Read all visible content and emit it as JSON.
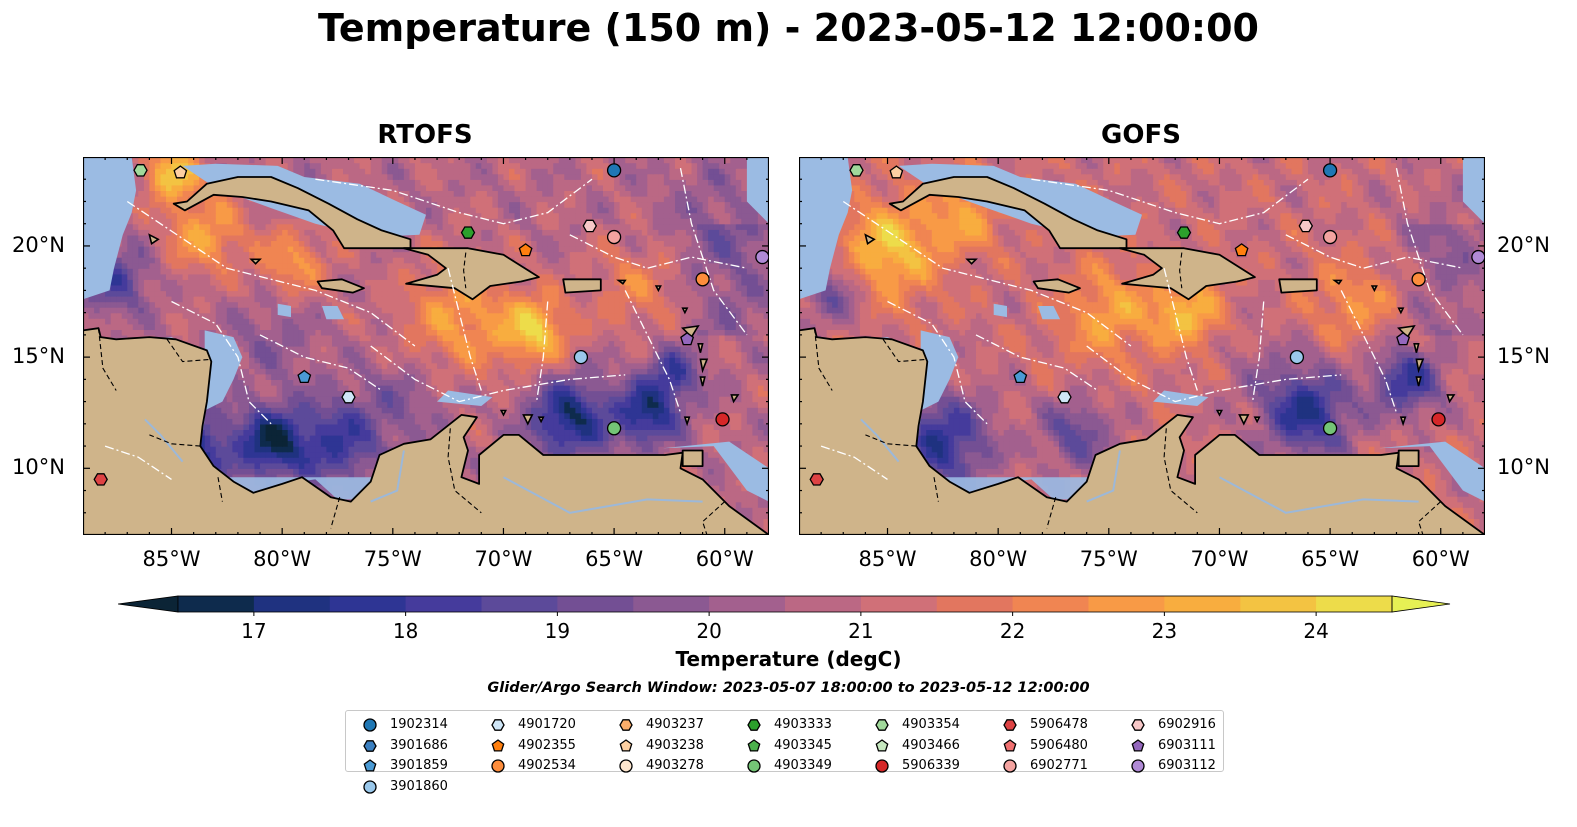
{
  "title": "Temperature (150 m) - 2023-05-12 12:00:00",
  "panels": [
    {
      "title": "RTOFS",
      "yticks_side": "left"
    },
    {
      "title": "GOFS",
      "yticks_side": "right"
    }
  ],
  "map_extent": {
    "lon_min": -89,
    "lon_max": -58,
    "lat_min": 7,
    "lat_max": 24
  },
  "xticks": [
    "85°W",
    "80°W",
    "75°W",
    "70°W",
    "65°W",
    "60°W"
  ],
  "xtick_values": [
    -85,
    -80,
    -75,
    -70,
    -65,
    -60
  ],
  "yticks": [
    "20°N",
    "15°N",
    "10°N"
  ],
  "ytick_values": [
    20,
    15,
    10
  ],
  "colorbar": {
    "label": "Temperature (degC)",
    "ticks": [
      "17",
      "18",
      "19",
      "20",
      "21",
      "22",
      "23",
      "24"
    ],
    "tick_values": [
      17,
      18,
      19,
      20,
      21,
      22,
      23,
      24
    ],
    "range": [
      16.5,
      24.5
    ],
    "extend": "both",
    "colors": [
      "#0b2436",
      "#0e2b4d",
      "#1f3280",
      "#2e3594",
      "#453b9c",
      "#5c4a9a",
      "#734f94",
      "#8b5992",
      "#a3608e",
      "#bb6884",
      "#d07078",
      "#e2765f",
      "#f08552",
      "#f89a46",
      "#f8ad3f",
      "#f3c342",
      "#eddc4a",
      "#e6f054"
    ]
  },
  "search_window": "Glider/Argo Search Window: 2023-05-07 18:00:00 to 2023-05-12 12:00:00",
  "legend": {
    "items": [
      {
        "id": "1902314",
        "marker": "circle",
        "color": "#1f77b4"
      },
      {
        "id": "3901686",
        "marker": "hexagon",
        "color": "#3a7fc0"
      },
      {
        "id": "3901859",
        "marker": "pentagon",
        "color": "#4a9ad4"
      },
      {
        "id": "3901860",
        "marker": "circle",
        "color": "#9ac8eb"
      },
      {
        "id": "4901720",
        "marker": "hexagon",
        "color": "#cfe6f7"
      },
      {
        "id": "4902355",
        "marker": "pentagon",
        "color": "#ff7f0e"
      },
      {
        "id": "4902534",
        "marker": "circle",
        "color": "#fd8d3c"
      },
      {
        "id": "4903237",
        "marker": "hexagon",
        "color": "#fdae6b"
      },
      {
        "id": "4903238",
        "marker": "pentagon",
        "color": "#fdd0a2"
      },
      {
        "id": "4903278",
        "marker": "circle",
        "color": "#fee6ce"
      },
      {
        "id": "4903333",
        "marker": "hexagon",
        "color": "#2ca02c"
      },
      {
        "id": "4903345",
        "marker": "pentagon",
        "color": "#4cb14c"
      },
      {
        "id": "4903349",
        "marker": "circle",
        "color": "#74c476"
      },
      {
        "id": "4903354",
        "marker": "hexagon",
        "color": "#a1d99b"
      },
      {
        "id": "4903466",
        "marker": "pentagon",
        "color": "#c7e9c0"
      },
      {
        "id": "5906339",
        "marker": "circle",
        "color": "#d62728"
      },
      {
        "id": "5906478",
        "marker": "hexagon",
        "color": "#de4344"
      },
      {
        "id": "5906480",
        "marker": "pentagon",
        "color": "#f07070"
      },
      {
        "id": "6902771",
        "marker": "circle",
        "color": "#f4a3a0"
      },
      {
        "id": "6902916",
        "marker": "hexagon",
        "color": "#f7c8c8"
      },
      {
        "id": "6903111",
        "marker": "pentagon",
        "color": "#9467bd"
      },
      {
        "id": "6903112",
        "marker": "circle",
        "color": "#b08ad6"
      }
    ]
  },
  "floats": [
    {
      "id": "4903354",
      "lon": -86.4,
      "lat": 23.4
    },
    {
      "id": "4903238",
      "lon": -84.6,
      "lat": 23.3
    },
    {
      "id": "1902314",
      "lon": -65.0,
      "lat": 23.4
    },
    {
      "id": "6902916",
      "lon": -66.1,
      "lat": 20.9
    },
    {
      "id": "6902771",
      "lon": -65.0,
      "lat": 20.4
    },
    {
      "id": "4903333",
      "lon": -71.6,
      "lat": 20.6
    },
    {
      "id": "4902355",
      "lon": -69.0,
      "lat": 19.8
    },
    {
      "id": "6903112",
      "lon": -58.3,
      "lat": 19.5
    },
    {
      "id": "4902534",
      "lon": -61.0,
      "lat": 18.5
    },
    {
      "id": "6903111",
      "lon": -61.7,
      "lat": 15.8
    },
    {
      "id": "3901860",
      "lon": -66.5,
      "lat": 15.0
    },
    {
      "id": "3901859",
      "lon": -79.0,
      "lat": 14.1
    },
    {
      "id": "4901720",
      "lon": -77.0,
      "lat": 13.2
    },
    {
      "id": "5906339",
      "lon": -60.1,
      "lat": 12.2
    },
    {
      "id": "4903349",
      "lon": -65.0,
      "lat": 11.8
    },
    {
      "id": "5906478",
      "lon": -88.2,
      "lat": 9.5
    }
  ],
  "fields": {
    "rtofs": {
      "base": 21.2,
      "blobs": [
        {
          "lon": -83.5,
          "lat": 20.6,
          "r": 1.8,
          "t": 23.4
        },
        {
          "lon": -79.5,
          "lat": 19.3,
          "r": 1.6,
          "t": 23.1
        },
        {
          "lon": -72.0,
          "lat": 16.8,
          "r": 2.6,
          "t": 23.3
        },
        {
          "lon": -68.5,
          "lat": 16.2,
          "r": 1.5,
          "t": 24.2
        },
        {
          "lon": -85.0,
          "lat": 23.3,
          "r": 1.2,
          "t": 24.4
        },
        {
          "lon": -64.0,
          "lat": 18.2,
          "r": 2.0,
          "t": 22.6
        },
        {
          "lon": -60.5,
          "lat": 21.5,
          "r": 2.5,
          "t": 20.4
        },
        {
          "lon": -80.5,
          "lat": 15.8,
          "r": 2.0,
          "t": 20.3
        },
        {
          "lon": -80.5,
          "lat": 11.2,
          "r": 1.5,
          "t": 17.3
        },
        {
          "lon": -84.0,
          "lat": 11.0,
          "r": 1.8,
          "t": 18.4
        },
        {
          "lon": -77.5,
          "lat": 11.2,
          "r": 2.0,
          "t": 18.6
        },
        {
          "lon": -67.0,
          "lat": 12.3,
          "r": 1.8,
          "t": 17.6
        },
        {
          "lon": -63.5,
          "lat": 12.5,
          "r": 1.4,
          "t": 17.8
        },
        {
          "lon": -62.3,
          "lat": 14.3,
          "r": 1.2,
          "t": 18.8
        },
        {
          "lon": -74.5,
          "lat": 13.2,
          "r": 2.0,
          "t": 20.2
        },
        {
          "lon": -87.5,
          "lat": 18.5,
          "r": 1.5,
          "t": 19.0
        }
      ]
    },
    "gofs": {
      "base": 21.6,
      "blobs": [
        {
          "lon": -85.0,
          "lat": 19.8,
          "r": 2.2,
          "t": 24.3
        },
        {
          "lon": -81.5,
          "lat": 21.5,
          "r": 1.8,
          "t": 23.3
        },
        {
          "lon": -75.0,
          "lat": 17.0,
          "r": 2.2,
          "t": 23.4
        },
        {
          "lon": -71.5,
          "lat": 17.0,
          "r": 1.5,
          "t": 24.0
        },
        {
          "lon": -64.0,
          "lat": 17.5,
          "r": 2.0,
          "t": 23.0
        },
        {
          "lon": -68.0,
          "lat": 14.5,
          "r": 2.0,
          "t": 21.0
        },
        {
          "lon": -82.5,
          "lat": 11.2,
          "r": 2.2,
          "t": 18.3
        },
        {
          "lon": -76.5,
          "lat": 11.6,
          "r": 1.6,
          "t": 19.4
        },
        {
          "lon": -66.0,
          "lat": 12.5,
          "r": 2.0,
          "t": 18.1
        },
        {
          "lon": -61.5,
          "lat": 14.0,
          "r": 1.6,
          "t": 18.5
        },
        {
          "lon": -87.5,
          "lat": 18.0,
          "r": 1.5,
          "t": 19.6
        },
        {
          "lon": -60.0,
          "lat": 21.0,
          "r": 2.4,
          "t": 21.0
        }
      ]
    }
  }
}
